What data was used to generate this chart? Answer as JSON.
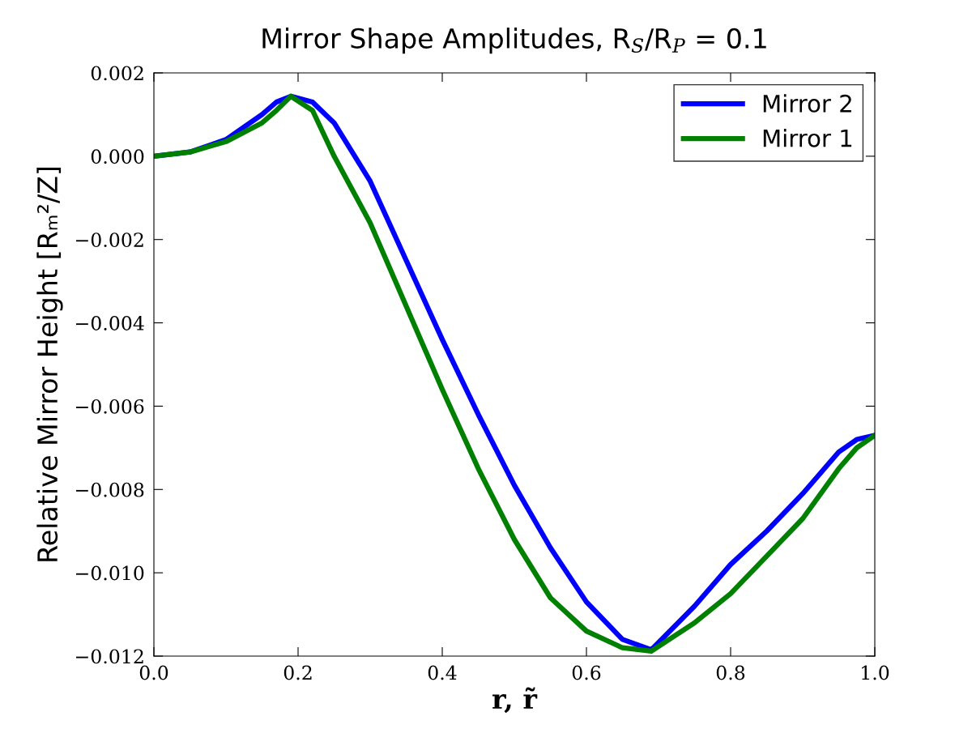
{
  "chart_data": {
    "type": "line",
    "title": "Mirror Shape Amplitudes, R$_{S}$/R$_{P}$ = 0.1",
    "xlabel": "r, r̃",
    "ylabel": "Relative Mirror Height [Rₘ²/Z]",
    "x": [
      0,
      0.05,
      0.1,
      0.15,
      0.17,
      0.19,
      0.22,
      0.25,
      0.3,
      0.35,
      0.4,
      0.45,
      0.5,
      0.55,
      0.6,
      0.65,
      0.69,
      0.75,
      0.8,
      0.85,
      0.9,
      0.95,
      0.975,
      1.0
    ],
    "series": [
      {
        "name": "Mirror 2",
        "color": "#0000ff",
        "values": [
          0,
          0.0001,
          0.0004,
          0.001,
          0.0013,
          0.00144,
          0.0013,
          0.0008,
          -0.0006,
          -0.0025,
          -0.0044,
          -0.0062,
          -0.0079,
          -0.0094,
          -0.0107,
          -0.0116,
          -0.01185,
          -0.0108,
          -0.0098,
          -0.009,
          -0.0081,
          -0.0071,
          -0.0068,
          -0.0067
        ]
      },
      {
        "name": "Mirror 1",
        "color": "#008000",
        "values": [
          0,
          0.0001,
          0.00035,
          0.0008,
          0.0011,
          0.00144,
          0.0011,
          0.0,
          -0.0016,
          -0.0036,
          -0.0056,
          -0.0075,
          -0.0092,
          -0.0106,
          -0.0114,
          -0.0118,
          -0.01188,
          -0.0112,
          -0.0105,
          -0.0096,
          -0.0087,
          -0.0075,
          -0.007,
          -0.0067
        ]
      }
    ],
    "xlim": [
      0.0,
      1.0
    ],
    "xticks": [
      {
        "value": 0.0,
        "label": "0.0"
      },
      {
        "value": 0.2,
        "label": "0.2"
      },
      {
        "value": 0.4,
        "label": "0.4"
      },
      {
        "value": 0.6,
        "label": "0.6"
      },
      {
        "value": 0.8,
        "label": "0.8"
      },
      {
        "value": 1.0,
        "label": "1.0"
      }
    ],
    "ylim": [
      -0.012,
      0.002
    ],
    "yticks": [
      {
        "value": -0.012,
        "label": "−0.012"
      },
      {
        "value": -0.01,
        "label": "−0.010"
      },
      {
        "value": -0.008,
        "label": "−0.008"
      },
      {
        "value": -0.006,
        "label": "−0.006"
      },
      {
        "value": -0.004,
        "label": "−0.004"
      },
      {
        "value": -0.002,
        "label": "−0.002"
      },
      {
        "value": 0.0,
        "label": "0.000"
      },
      {
        "value": 0.002,
        "label": "0.002"
      }
    ],
    "grid": false,
    "legend": "top right",
    "marker": "none",
    "line_style": "solid"
  }
}
